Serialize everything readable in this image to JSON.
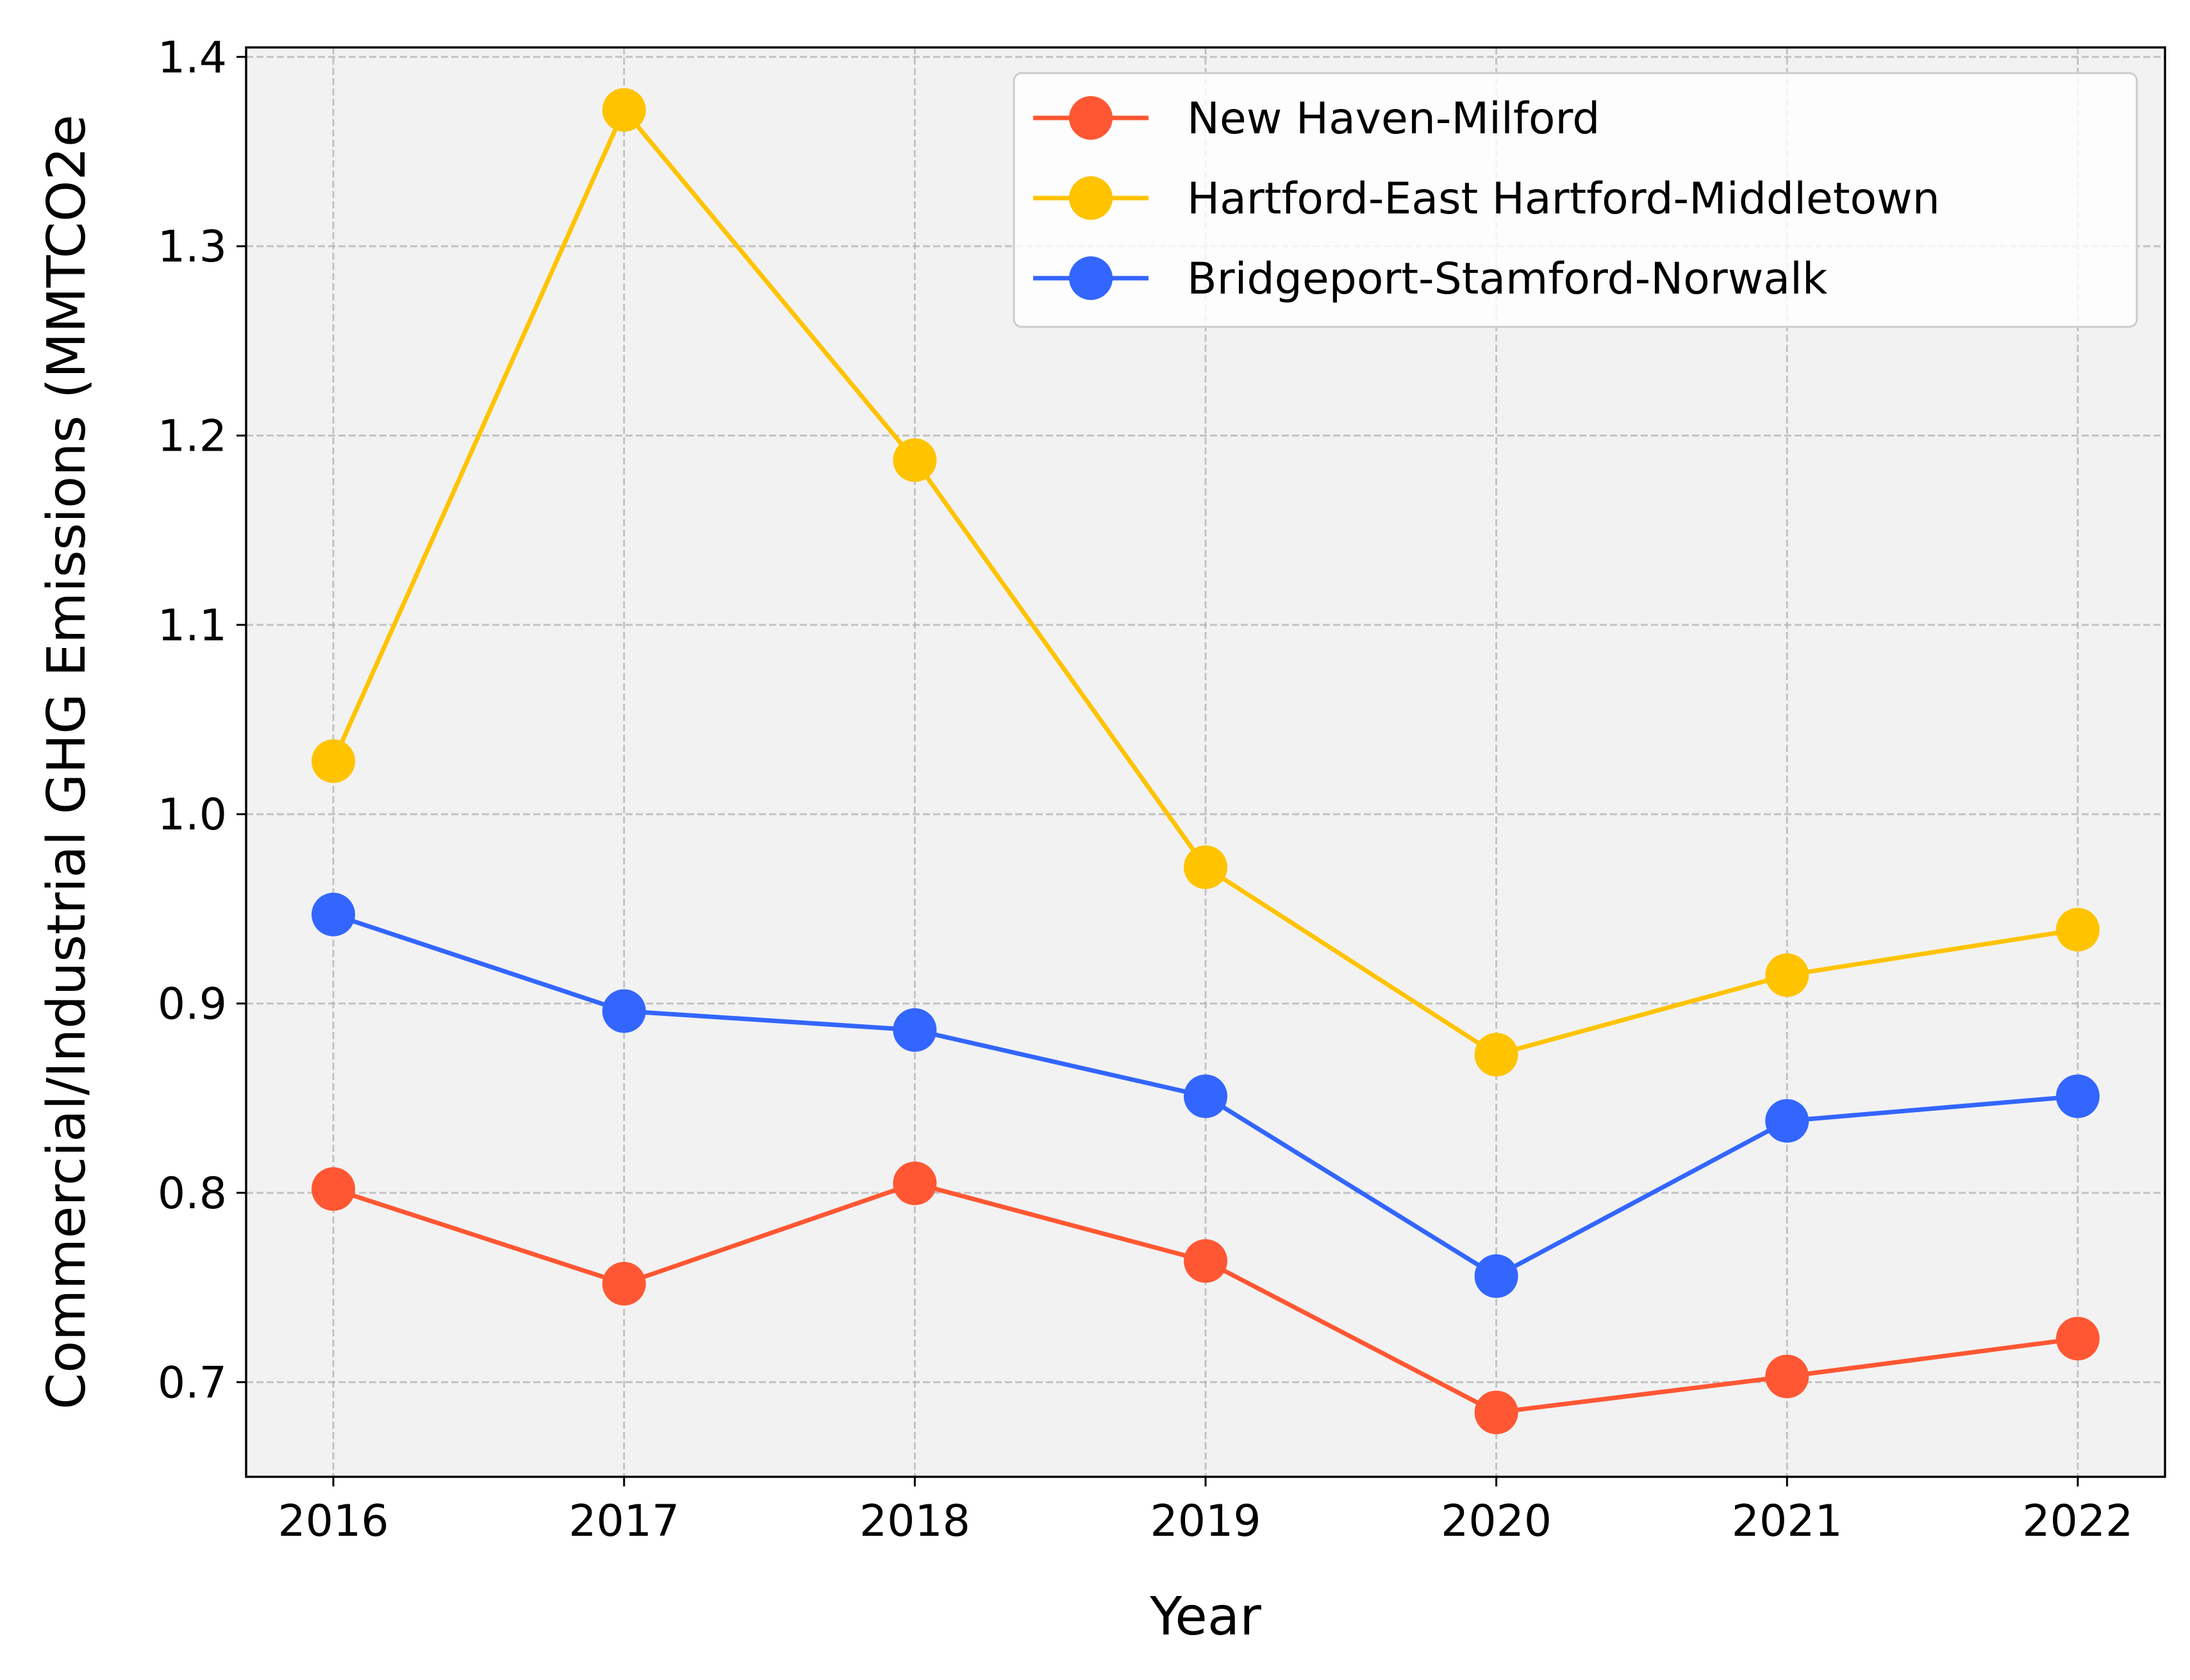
{
  "chart_data": {
    "type": "line",
    "title": "",
    "xlabel": "Year",
    "ylabel": "Commercial/Industrial GHG Emissions (MMTCO2e",
    "x": [
      2016,
      2017,
      2018,
      2019,
      2020,
      2021,
      2022
    ],
    "x_tick_labels": [
      "2016",
      "2017",
      "2018",
      "2019",
      "2020",
      "2021",
      "2022"
    ],
    "y_ticks": [
      0.7,
      0.8,
      0.9,
      1.0,
      1.1,
      1.2,
      1.3,
      1.4
    ],
    "y_tick_labels": [
      "0.7",
      "0.8",
      "0.9",
      "1.0",
      "1.1",
      "1.2",
      "1.3",
      "1.4"
    ],
    "xlim": [
      2015.7,
      2022.3
    ],
    "ylim": [
      0.65,
      1.405
    ],
    "grid": true,
    "legend_position": "top-right",
    "series": [
      {
        "name": "New Haven-Milford",
        "color": "#FF5733",
        "values": [
          0.802,
          0.752,
          0.805,
          0.764,
          0.684,
          0.703,
          0.723
        ]
      },
      {
        "name": "Hartford-East Hartford-Middletown",
        "color": "#FFC300",
        "values": [
          1.028,
          1.372,
          1.187,
          0.972,
          0.873,
          0.915,
          0.939
        ]
      },
      {
        "name": "Bridgeport-Stamford-Norwalk",
        "color": "#3366FF",
        "values": [
          0.947,
          0.896,
          0.886,
          0.851,
          0.756,
          0.838,
          0.851
        ]
      }
    ]
  }
}
